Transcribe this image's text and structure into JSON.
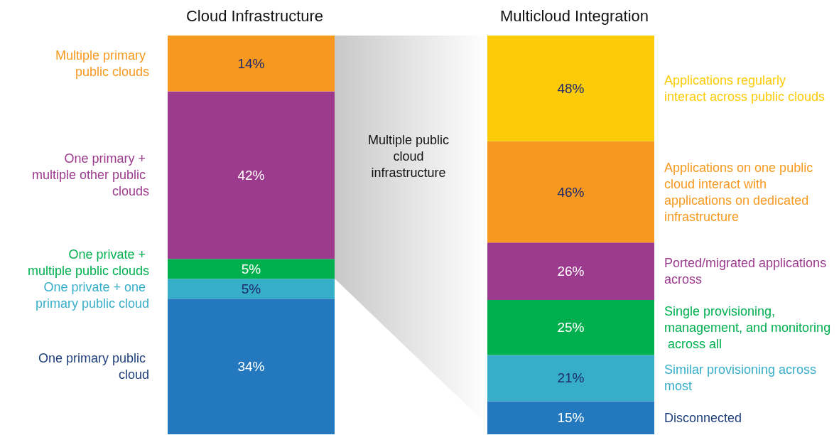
{
  "chart_data": [
    {
      "type": "bar",
      "title": "Cloud Infrastructure",
      "stacked": true,
      "categories": [
        null
      ],
      "annotations": [
        "Multiple public cloud infrastructure"
      ],
      "series": [
        {
          "name": "One primary public cloud",
          "color": "#2478bd",
          "values": [
            34
          ],
          "value_labels": [
            "34%"
          ]
        },
        {
          "name": "One private + one primary public cloud",
          "color": "#37aec9",
          "values": [
            5
          ],
          "value_labels": [
            "5%"
          ]
        },
        {
          "name": "One private + multiple public clouds",
          "color": "#00b04f",
          "values": [
            5
          ],
          "value_labels": [
            "5%"
          ]
        },
        {
          "name": "One primary + multiple other public clouds",
          "color": "#9c3a8d",
          "values": [
            42
          ],
          "value_labels": [
            "42%"
          ]
        },
        {
          "name": "Multiple primary public clouds",
          "color": "#f7991e",
          "values": [
            14
          ],
          "value_labels": [
            "14%"
          ]
        }
      ]
    },
    {
      "type": "bar",
      "title": "Multicloud Integration",
      "stacked": true,
      "categories": [
        null
      ],
      "series": [
        {
          "name": "Disconnected",
          "color": "#2478bd",
          "values": [
            15
          ],
          "value_labels": [
            "15%"
          ]
        },
        {
          "name": "Similar provisioning across most",
          "color": "#37aec9",
          "values": [
            21
          ],
          "value_labels": [
            "21%"
          ]
        },
        {
          "name": "Single provisioning, management, and monitoring across all",
          "color": "#00b04f",
          "values": [
            25
          ],
          "value_labels": [
            "25%"
          ]
        },
        {
          "name": "Ported/migrated applications across",
          "color": "#9c3a8d",
          "values": [
            26
          ],
          "value_labels": [
            "26%"
          ]
        },
        {
          "name": "Applications on one public cloud interact with applications on dedicated infrastructure",
          "color": "#f7991e",
          "values": [
            46
          ],
          "value_labels": [
            "46%"
          ]
        },
        {
          "name": "Applications regularly interact across public clouds",
          "color": "#fccb08",
          "values": [
            48
          ],
          "value_labels": [
            "48%"
          ]
        }
      ]
    }
  ]
}
